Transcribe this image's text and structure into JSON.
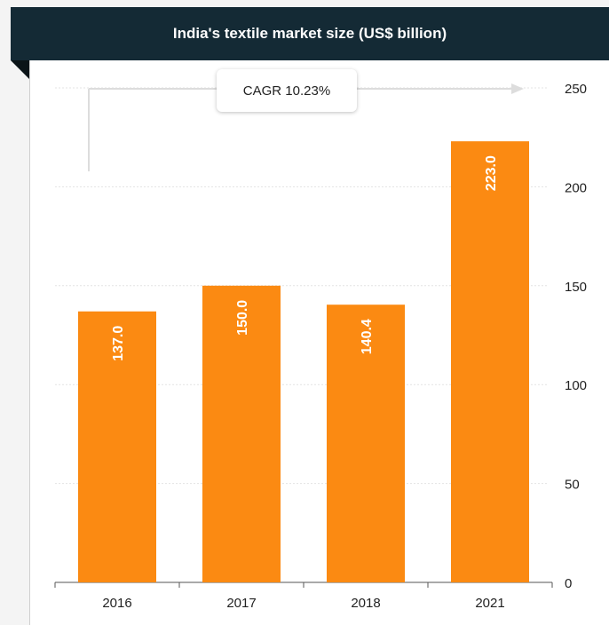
{
  "chart_data": {
    "type": "bar",
    "title": "India's textile market size (US$ billion)",
    "categories": [
      "2016",
      "2017",
      "2018",
      "2021"
    ],
    "values": [
      137.0,
      150.0,
      140.4,
      223.0
    ],
    "value_labels": [
      "137.0",
      "150.0",
      "140.4",
      "223.0"
    ],
    "xlabel": "",
    "ylabel": "",
    "ylim": [
      0,
      250
    ],
    "yticks": [
      "0",
      "50",
      "100",
      "150",
      "200",
      "250"
    ],
    "y_axis_side": "right",
    "grid": true,
    "annotation": "CAGR 10.23%",
    "colors": {
      "bar": "#fb8a12",
      "header_bg": "#142a35",
      "grid": "#e3e3e3",
      "arrow": "#dddddd"
    }
  }
}
